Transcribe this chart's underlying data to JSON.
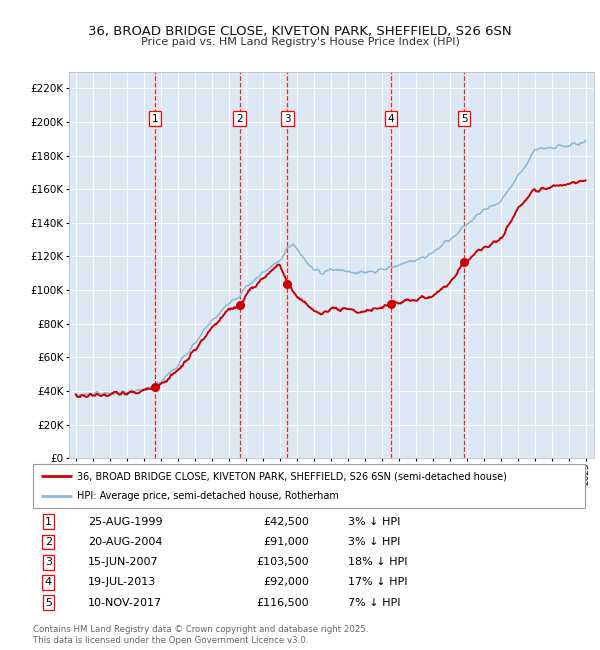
{
  "title_line1": "36, BROAD BRIDGE CLOSE, KIVETON PARK, SHEFFIELD, S26 6SN",
  "title_line2": "Price paid vs. HM Land Registry's House Price Index (HPI)",
  "ylim": [
    0,
    230000
  ],
  "yticks": [
    0,
    20000,
    40000,
    60000,
    80000,
    100000,
    120000,
    140000,
    160000,
    180000,
    200000,
    220000
  ],
  "bg_color": "#dce9f5",
  "hpi_color": "#89b8d8",
  "price_color": "#cc0000",
  "purchases": [
    {
      "num": 1,
      "date": "25-AUG-1999",
      "price": 42500,
      "year": 1999.65,
      "pct": "3%",
      "dir": "↓"
    },
    {
      "num": 2,
      "date": "20-AUG-2004",
      "price": 91000,
      "year": 2004.64,
      "pct": "3%",
      "dir": "↓"
    },
    {
      "num": 3,
      "date": "15-JUN-2007",
      "price": 103500,
      "year": 2007.45,
      "pct": "18%",
      "dir": "↓"
    },
    {
      "num": 4,
      "date": "19-JUL-2013",
      "price": 92000,
      "year": 2013.54,
      "pct": "17%",
      "dir": "↓"
    },
    {
      "num": 5,
      "date": "10-NOV-2017",
      "price": 116500,
      "year": 2017.86,
      "pct": "7%",
      "dir": "↓"
    }
  ],
  "footer_line1": "Contains HM Land Registry data © Crown copyright and database right 2025.",
  "footer_line2": "This data is licensed under the Open Government Licence v3.0.",
  "legend_line1": "36, BROAD BRIDGE CLOSE, KIVETON PARK, SHEFFIELD, S26 6SN (semi-detached house)",
  "legend_line2": "HPI: Average price, semi-detached house, Rotherham"
}
